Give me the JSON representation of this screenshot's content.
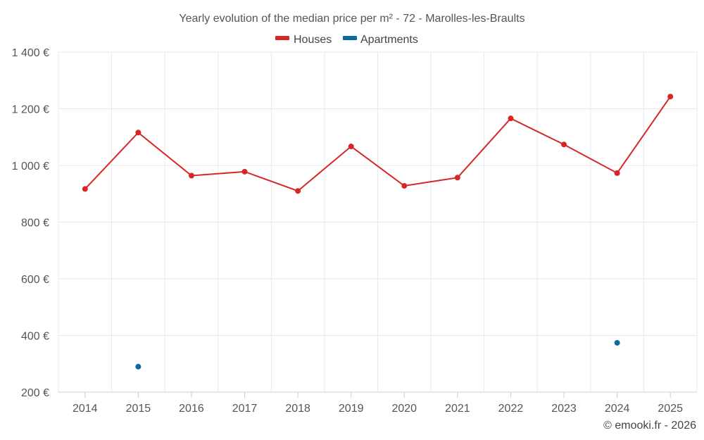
{
  "chart_data": {
    "type": "line",
    "title": "Yearly evolution of the median price per m² - 72 - Marolles-les-Braults",
    "categories": [
      "2014",
      "2015",
      "2016",
      "2017",
      "2018",
      "2019",
      "2020",
      "2021",
      "2022",
      "2023",
      "2024",
      "2025"
    ],
    "series": [
      {
        "name": "Houses",
        "color": "#d62728",
        "values": [
          917,
          1116,
          964,
          978,
          910,
          1067,
          928,
          957,
          1166,
          1074,
          973,
          1243
        ]
      },
      {
        "name": "Apartments",
        "color": "#0b6aa2",
        "values": [
          null,
          290,
          null,
          null,
          null,
          null,
          null,
          null,
          null,
          null,
          374,
          null
        ]
      }
    ],
    "yticks": [
      "200 €",
      "400 €",
      "600 €",
      "800 €",
      "1 000 €",
      "1 200 €",
      "1 400 €"
    ],
    "ytick_values": [
      200,
      400,
      600,
      800,
      1000,
      1200,
      1400
    ],
    "ylim": [
      200,
      1400
    ],
    "xlabel": "",
    "ylabel": "",
    "grid": true,
    "legend": "top-center"
  },
  "credit": "© emooki.fr - 2026"
}
